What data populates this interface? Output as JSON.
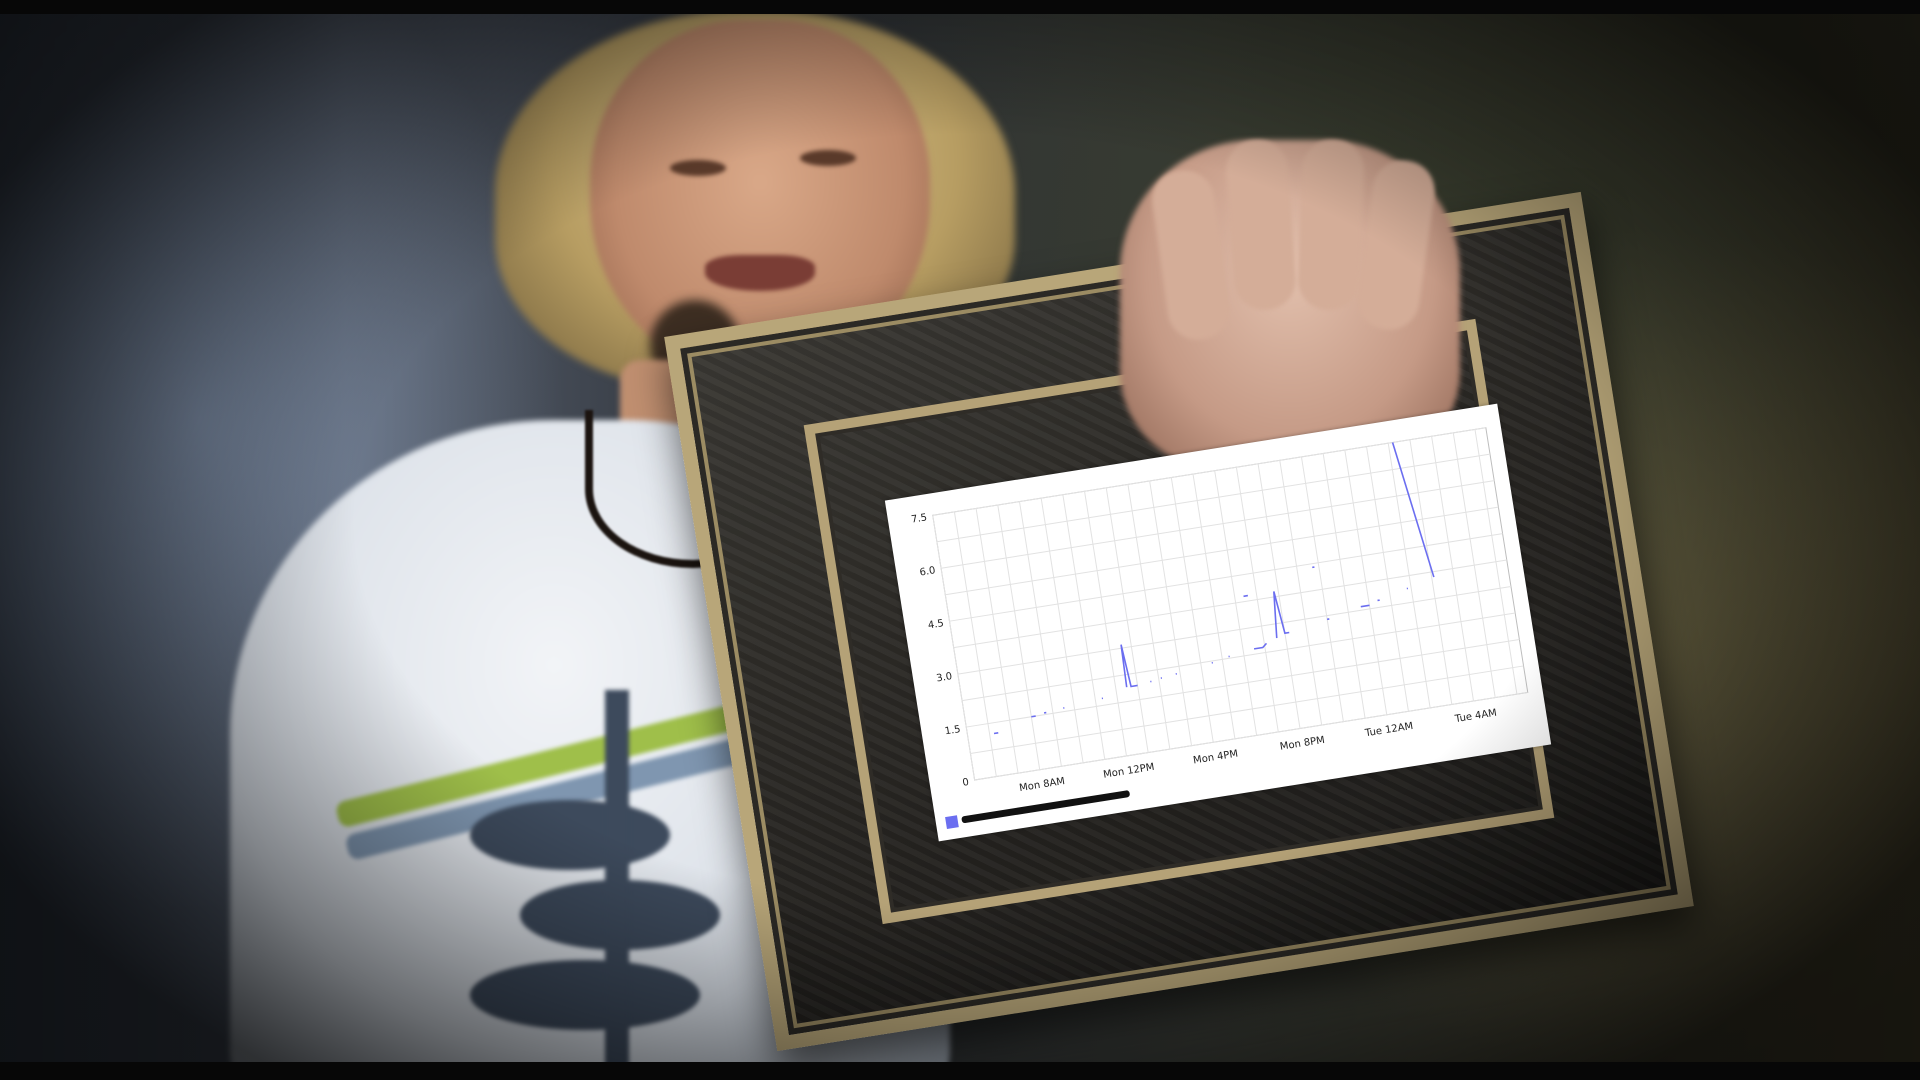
{
  "scene": {
    "description_colors": {
      "background_left": "#5a6372",
      "background_right": "#5a5339",
      "frame_border": "#b8a679",
      "frame_fill": "#2b2925",
      "shirt": "#f2f4f7"
    }
  },
  "chart_data": {
    "type": "line",
    "title": "",
    "xlabel": "",
    "ylabel": "",
    "y_ticks": [
      "0",
      "1.5",
      "3.0",
      "4.5",
      "6.0",
      "7.5"
    ],
    "ylim": [
      0,
      7.5
    ],
    "x_tick_labels": [
      "Mon 8AM",
      "Mon 12PM",
      "Mon 4PM",
      "Mon 8PM",
      "Tue 12AM",
      "Tue 4AM"
    ],
    "x_tick_hours": [
      8,
      12,
      16,
      20,
      24,
      28
    ],
    "xlim_hours": [
      5,
      30.5
    ],
    "grid": true,
    "color": "#6b6ef0",
    "legend": {
      "placement": "bottom-left",
      "label": ""
    },
    "segments": [
      [
        [
          6.2,
          1.2
        ],
        [
          6.4,
          1.2
        ]
      ],
      [
        [
          8.0,
          1.5
        ],
        [
          8.2,
          1.5
        ]
      ],
      [
        [
          8.6,
          1.55
        ],
        [
          8.7,
          1.55
        ]
      ],
      [
        [
          9.5,
          1.6
        ],
        [
          9.55,
          1.6
        ]
      ],
      [
        [
          11.3,
          1.7
        ],
        [
          11.35,
          1.7
        ]
      ],
      [
        [
          12.5,
          1.9
        ],
        [
          12.55,
          3.1
        ],
        [
          12.7,
          1.9
        ],
        [
          13.0,
          1.9
        ]
      ],
      [
        [
          13.6,
          1.95
        ],
        [
          13.65,
          1.95
        ]
      ],
      [
        [
          14.1,
          2.0
        ],
        [
          14.15,
          2.0
        ]
      ],
      [
        [
          14.8,
          2.05
        ],
        [
          14.85,
          2.05
        ]
      ],
      [
        [
          16.5,
          2.2
        ],
        [
          16.55,
          2.2
        ]
      ],
      [
        [
          17.3,
          2.3
        ],
        [
          17.35,
          2.3
        ]
      ],
      [
        [
          18.5,
          2.4
        ],
        [
          18.9,
          2.4
        ],
        [
          19.1,
          2.5
        ]
      ],
      [
        [
          19.6,
          2.6
        ],
        [
          19.8,
          3.9
        ],
        [
          20.0,
          2.7
        ],
        [
          20.2,
          2.7
        ]
      ],
      [
        [
          22.0,
          2.9
        ],
        [
          22.1,
          2.9
        ]
      ],
      [
        [
          23.6,
          3.1
        ],
        [
          24.0,
          3.1
        ]
      ],
      [
        [
          24.4,
          3.2
        ],
        [
          24.5,
          3.2
        ]
      ],
      [
        [
          25.8,
          3.4
        ],
        [
          25.85,
          3.4
        ]
      ],
      [
        [
          26.2,
          7.5
        ],
        [
          27.1,
          3.6
        ]
      ],
      [
        [
          18.4,
          3.9
        ],
        [
          18.6,
          3.9
        ]
      ],
      [
        [
          21.7,
          4.4
        ],
        [
          21.8,
          4.4
        ]
      ]
    ]
  }
}
